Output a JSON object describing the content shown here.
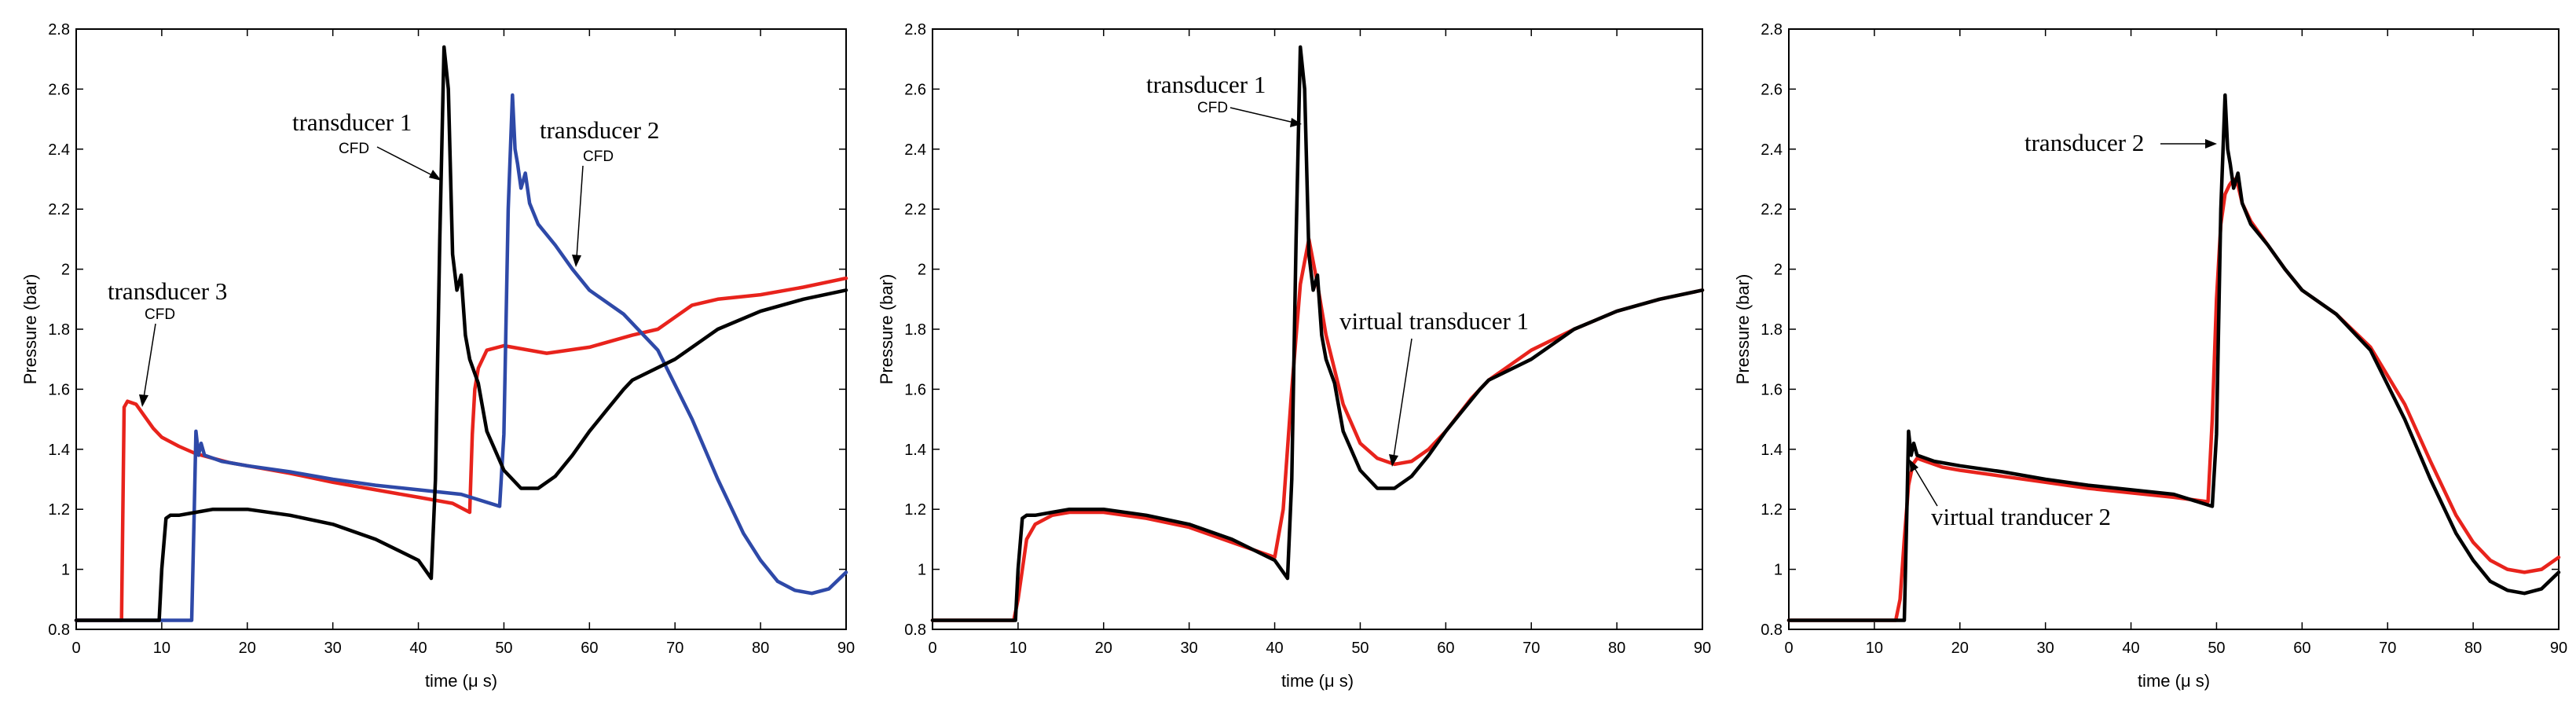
{
  "chart_data": [
    {
      "type": "line",
      "xlabel": "time (μ s)",
      "ylabel": "Pressure (bar)",
      "xlim": [
        0,
        90
      ],
      "ylim": [
        0.8,
        2.8
      ],
      "xticks": [
        "0",
        "10",
        "20",
        "30",
        "40",
        "50",
        "60",
        "70",
        "80",
        "90"
      ],
      "yticks": [
        "0.8",
        "1",
        "1.2",
        "1.4",
        "1.6",
        "1.8",
        "2",
        "2.2",
        "2.4",
        "2.6",
        "2.8"
      ],
      "series": [
        {
          "name": "transducer 3 CFD",
          "color": "#e8231c",
          "x": [
            0,
            5.3,
            5.6,
            6,
            7,
            8,
            9,
            10,
            12,
            14,
            16,
            18,
            20,
            25,
            30,
            35,
            40,
            44,
            46,
            46.3,
            46.6,
            47,
            48,
            50,
            55,
            60,
            65,
            68,
            70,
            72,
            75,
            80,
            85,
            90
          ],
          "y": [
            0.83,
            0.83,
            1.54,
            1.56,
            1.55,
            1.51,
            1.47,
            1.44,
            1.41,
            1.385,
            1.37,
            1.355,
            1.345,
            1.32,
            1.29,
            1.265,
            1.24,
            1.22,
            1.19,
            1.45,
            1.6,
            1.67,
            1.73,
            1.745,
            1.72,
            1.74,
            1.78,
            1.8,
            1.84,
            1.88,
            1.9,
            1.915,
            1.94,
            1.97
          ]
        },
        {
          "name": "transducer 2 CFD",
          "color": "#2e49a8",
          "x": [
            0,
            13.5,
            13.8,
            14,
            14.3,
            14.6,
            15,
            17,
            20,
            25,
            30,
            35,
            40,
            45,
            49.5,
            50,
            50.5,
            51,
            51.3,
            51.6,
            52,
            52.5,
            53,
            54,
            56,
            58,
            60,
            64,
            68,
            72,
            75,
            78,
            80,
            82,
            84,
            86,
            88,
            90
          ],
          "y": [
            0.83,
            0.83,
            1.2,
            1.46,
            1.38,
            1.42,
            1.38,
            1.36,
            1.345,
            1.325,
            1.3,
            1.28,
            1.265,
            1.25,
            1.21,
            1.45,
            2.2,
            2.58,
            2.4,
            2.35,
            2.27,
            2.32,
            2.22,
            2.15,
            2.08,
            2.0,
            1.93,
            1.85,
            1.73,
            1.5,
            1.3,
            1.12,
            1.03,
            0.96,
            0.93,
            0.92,
            0.935,
            0.99
          ]
        },
        {
          "name": "transducer 1 CFD",
          "color": "#000000",
          "x": [
            0,
            9.7,
            10,
            10.5,
            11,
            12,
            14,
            16,
            18,
            20,
            25,
            30,
            35,
            40,
            41.5,
            42,
            42.5,
            43,
            43.5,
            44,
            44.5,
            45,
            45.5,
            46,
            47,
            48,
            50,
            52,
            54,
            56,
            58,
            60,
            62,
            64,
            65,
            70,
            75,
            80,
            85,
            90
          ],
          "y": [
            0.83,
            0.83,
            1.0,
            1.17,
            1.18,
            1.18,
            1.19,
            1.2,
            1.2,
            1.2,
            1.18,
            1.15,
            1.1,
            1.03,
            0.97,
            1.3,
            2.1,
            2.74,
            2.6,
            2.05,
            1.93,
            1.98,
            1.78,
            1.7,
            1.62,
            1.46,
            1.33,
            1.27,
            1.27,
            1.31,
            1.38,
            1.46,
            1.53,
            1.6,
            1.63,
            1.7,
            1.8,
            1.86,
            1.9,
            1.93
          ]
        }
      ],
      "annotations": [
        {
          "text": "transducer 1",
          "sub": "CFD"
        },
        {
          "text": "transducer 2",
          "sub": "CFD"
        },
        {
          "text": "transducer 3",
          "sub": "CFD"
        }
      ]
    },
    {
      "type": "line",
      "xlabel": "time (μ s)",
      "ylabel": "Pressure (bar)",
      "xlim": [
        0,
        90
      ],
      "ylim": [
        0.8,
        2.8
      ],
      "xticks": [
        "0",
        "10",
        "20",
        "30",
        "40",
        "50",
        "60",
        "70",
        "80",
        "90"
      ],
      "yticks": [
        "0.8",
        "1",
        "1.2",
        "1.4",
        "1.6",
        "1.8",
        "2",
        "2.2",
        "2.4",
        "2.6",
        "2.8"
      ],
      "series": [
        {
          "name": "virtual transducer 1",
          "color": "#e8231c",
          "x": [
            0,
            9.5,
            10,
            11,
            12,
            14,
            16,
            18,
            20,
            25,
            30,
            35,
            40,
            41,
            42,
            43,
            44,
            45,
            46,
            48,
            50,
            52,
            54,
            56,
            58,
            60,
            63,
            65,
            70,
            75,
            80,
            85,
            90
          ],
          "y": [
            0.83,
            0.83,
            0.9,
            1.1,
            1.15,
            1.18,
            1.19,
            1.19,
            1.19,
            1.17,
            1.14,
            1.09,
            1.04,
            1.2,
            1.6,
            1.95,
            2.1,
            1.95,
            1.78,
            1.55,
            1.42,
            1.37,
            1.35,
            1.36,
            1.4,
            1.46,
            1.57,
            1.63,
            1.73,
            1.8,
            1.86,
            1.9,
            1.93
          ]
        },
        {
          "name": "transducer 1 CFD",
          "color": "#000000",
          "x": [
            0,
            9.7,
            10,
            10.5,
            11,
            12,
            14,
            16,
            18,
            20,
            25,
            30,
            35,
            40,
            41.5,
            42,
            42.5,
            43,
            43.5,
            44,
            44.5,
            45,
            45.5,
            46,
            47,
            48,
            50,
            52,
            54,
            56,
            58,
            60,
            62,
            64,
            65,
            70,
            75,
            80,
            85,
            90
          ],
          "y": [
            0.83,
            0.83,
            1.0,
            1.17,
            1.18,
            1.18,
            1.19,
            1.2,
            1.2,
            1.2,
            1.18,
            1.15,
            1.1,
            1.03,
            0.97,
            1.3,
            2.1,
            2.74,
            2.6,
            2.05,
            1.93,
            1.98,
            1.78,
            1.7,
            1.62,
            1.46,
            1.33,
            1.27,
            1.27,
            1.31,
            1.38,
            1.46,
            1.53,
            1.6,
            1.63,
            1.7,
            1.8,
            1.86,
            1.9,
            1.93
          ]
        }
      ],
      "annotations": [
        {
          "text": "transducer 1",
          "sub": "CFD"
        },
        {
          "text": "virtual transducer 1",
          "sub": ""
        }
      ]
    },
    {
      "type": "line",
      "xlabel": "time (μ s)",
      "ylabel": "Pressure (bar)",
      "xlim": [
        0,
        90
      ],
      "ylim": [
        0.8,
        2.8
      ],
      "xticks": [
        "0",
        "10",
        "20",
        "30",
        "40",
        "50",
        "60",
        "70",
        "80",
        "90"
      ],
      "yticks": [
        "0.8",
        "1",
        "1.2",
        "1.4",
        "1.6",
        "1.8",
        "2",
        "2.2",
        "2.4",
        "2.6",
        "2.8"
      ],
      "series": [
        {
          "name": "virtual tranducer 2",
          "color": "#e8231c",
          "x": [
            0,
            12.5,
            13,
            13.5,
            14,
            14.5,
            15,
            16,
            18,
            20,
            25,
            30,
            35,
            40,
            45,
            49,
            49.5,
            50,
            50.5,
            51,
            51.5,
            52,
            52.5,
            53,
            54,
            56,
            58,
            60,
            64,
            68,
            72,
            75,
            78,
            80,
            82,
            84,
            86,
            88,
            90
          ],
          "y": [
            0.83,
            0.83,
            0.9,
            1.1,
            1.28,
            1.35,
            1.37,
            1.36,
            1.34,
            1.33,
            1.31,
            1.29,
            1.27,
            1.255,
            1.24,
            1.225,
            1.5,
            1.9,
            2.15,
            2.25,
            2.28,
            2.3,
            2.28,
            2.22,
            2.16,
            2.08,
            2.0,
            1.93,
            1.85,
            1.74,
            1.55,
            1.36,
            1.18,
            1.09,
            1.03,
            1.0,
            0.99,
            1.0,
            1.04
          ]
        },
        {
          "name": "transducer 2",
          "color": "#000000",
          "x": [
            0,
            13.5,
            13.8,
            14,
            14.3,
            14.6,
            15,
            17,
            20,
            25,
            30,
            35,
            40,
            45,
            49.5,
            50,
            50.5,
            51,
            51.3,
            51.6,
            52,
            52.5,
            53,
            54,
            56,
            58,
            60,
            64,
            68,
            72,
            75,
            78,
            80,
            82,
            84,
            86,
            88,
            90
          ],
          "y": [
            0.83,
            0.83,
            1.2,
            1.46,
            1.38,
            1.42,
            1.38,
            1.36,
            1.345,
            1.325,
            1.3,
            1.28,
            1.265,
            1.25,
            1.21,
            1.45,
            2.2,
            2.58,
            2.4,
            2.35,
            2.27,
            2.32,
            2.22,
            2.15,
            2.08,
            2.0,
            1.93,
            1.85,
            1.73,
            1.5,
            1.3,
            1.12,
            1.03,
            0.96,
            0.93,
            0.92,
            0.935,
            0.99
          ]
        }
      ],
      "annotations": [
        {
          "text": "transducer 2",
          "sub": ""
        },
        {
          "text": "virtual tranducer 2",
          "sub": ""
        }
      ]
    }
  ]
}
